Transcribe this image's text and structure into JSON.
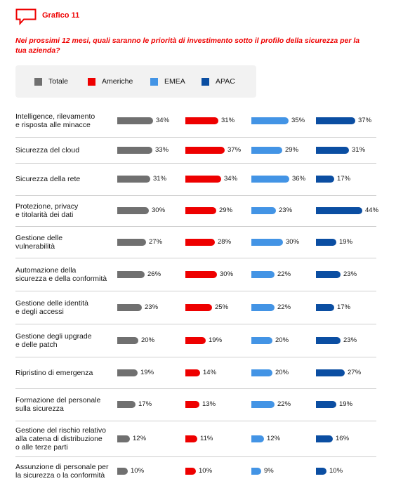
{
  "header": {
    "title": "Grafico 11",
    "icon": "speech-bubble-icon"
  },
  "question": "Nei prossimi 12 mesi, quali saranno le priorità di investimento sotto il profilo della sicurezza per la tua azienda?",
  "colors": {
    "accent": "#ee0000",
    "Totale": "#707070",
    "Americhe": "#ee0000",
    "EMEA": "#4394e5",
    "APAC": "#0b4ea2"
  },
  "chart_data": {
    "type": "bar",
    "orientation": "horizontal",
    "title": "",
    "legend": "top",
    "categories": [
      "Intelligence, rilevamento e risposta alle minacce",
      "Sicurezza del cloud",
      "Sicurezza della rete",
      "Protezione, privacy e titolarità dei dati",
      "Gestione delle vulnerabilità",
      "Automazione della sicurezza e della conformità",
      "Gestione delle identità e degli accessi",
      "Gestione degli upgrade e delle patch",
      "Ripristino di emergenza",
      "Formazione del personale sulla sicurezza",
      "Gestione del rischio relativo alla catena di distribuzione o alle terze parti",
      "Assunzione di personale per la sicurezza o la conformità"
    ],
    "category_lines": [
      [
        "Intelligence, rilevamento",
        "e risposta alle minacce"
      ],
      [
        "Sicurezza del cloud"
      ],
      [
        "Sicurezza della rete"
      ],
      [
        "Protezione, privacy",
        "e titolarità dei dati"
      ],
      [
        "Gestione delle",
        "vulnerabilità"
      ],
      [
        "Automazione della",
        "sicurezza e della conformità"
      ],
      [
        "Gestione delle identità",
        "e degli accessi"
      ],
      [
        "Gestione degli upgrade",
        "e delle patch"
      ],
      [
        "Ripristino di emergenza"
      ],
      [
        "Formazione del personale",
        "sulla sicurezza"
      ],
      [
        "Gestione del rischio relativo",
        "alla catena di distribuzione",
        "o alle terze parti"
      ],
      [
        "Assunzione di personale per",
        "la sicurezza o la conformità"
      ]
    ],
    "unit": "%",
    "series": [
      {
        "name": "Totale",
        "values": [
          34,
          33,
          31,
          30,
          27,
          26,
          23,
          20,
          19,
          17,
          12,
          10
        ]
      },
      {
        "name": "Americhe",
        "values": [
          31,
          37,
          34,
          29,
          28,
          30,
          25,
          19,
          14,
          13,
          11,
          10
        ]
      },
      {
        "name": "EMEA",
        "values": [
          35,
          29,
          36,
          23,
          30,
          22,
          22,
          20,
          20,
          22,
          12,
          9
        ]
      },
      {
        "name": "APAC",
        "values": [
          37,
          31,
          17,
          44,
          19,
          23,
          17,
          23,
          27,
          19,
          16,
          10
        ]
      }
    ]
  }
}
